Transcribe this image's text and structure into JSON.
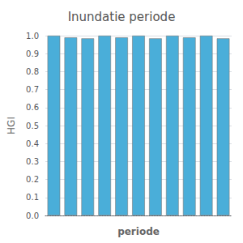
{
  "chart_data": {
    "type": "bar",
    "title": "Inundatie periode",
    "xlabel": "periode",
    "ylabel": "HGI",
    "categories": [
      null,
      null,
      null,
      null,
      null,
      null,
      null,
      null,
      null,
      null,
      null
    ],
    "values": [
      1.0,
      0.99,
      0.985,
      1.0,
      0.99,
      1.0,
      0.985,
      1.0,
      0.99,
      1.0,
      0.985
    ],
    "color": "#4aaed9",
    "ylim": [
      0.0,
      1.0
    ],
    "yticks": [
      {
        "value": 0.0,
        "label": "0.0"
      },
      {
        "value": 0.1,
        "label": "0.1"
      },
      {
        "value": 0.2,
        "label": "0.2"
      },
      {
        "value": 0.3,
        "label": "0.3"
      },
      {
        "value": 0.4,
        "label": "0.4"
      },
      {
        "value": 0.5,
        "label": "0.5"
      },
      {
        "value": 0.6,
        "label": "0.6"
      },
      {
        "value": 0.7,
        "label": "0.7"
      },
      {
        "value": 0.8,
        "label": "0.8"
      },
      {
        "value": 0.9,
        "label": "0.9"
      },
      {
        "value": 1.0,
        "label": "1.0"
      }
    ],
    "grid": true,
    "tick_labels": "y"
  }
}
